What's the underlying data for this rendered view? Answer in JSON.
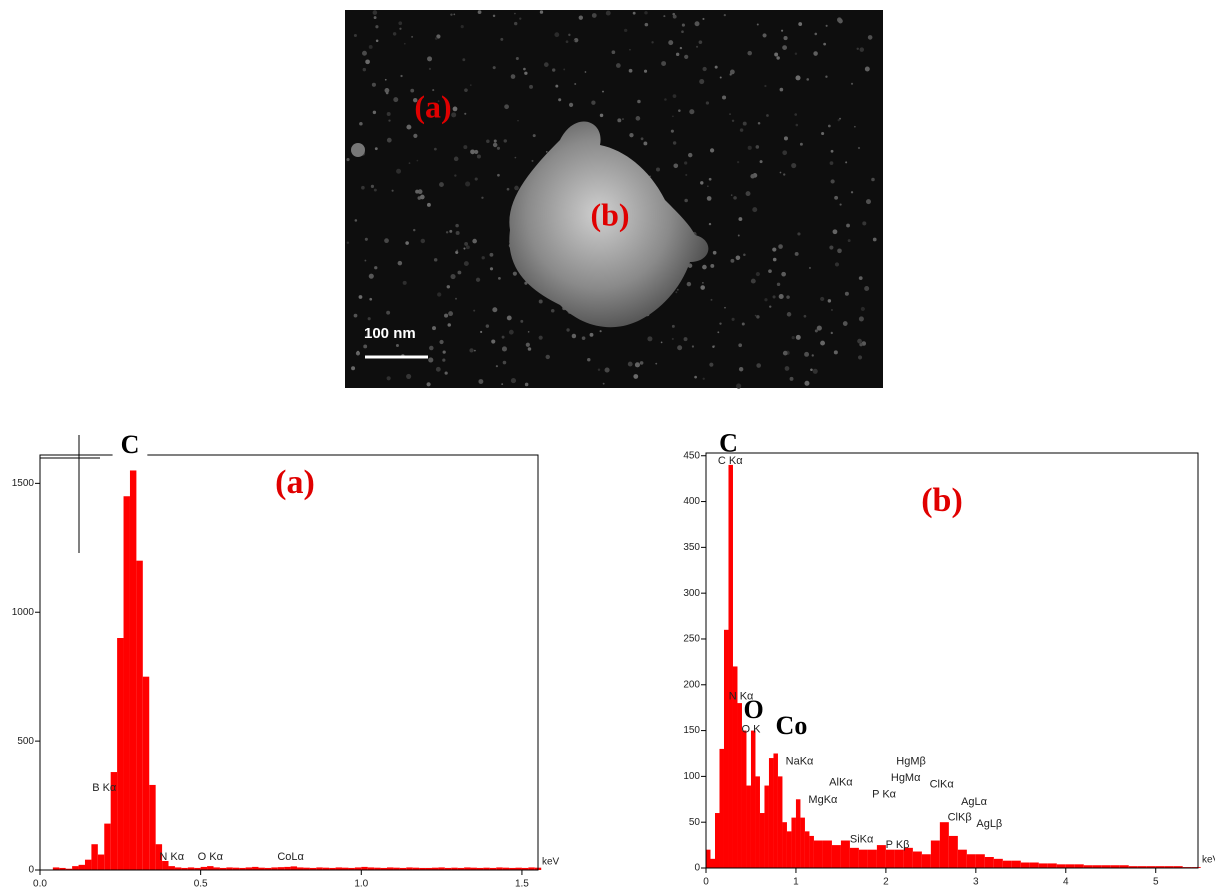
{
  "image": {
    "labels": [
      "(a)",
      "(b)"
    ],
    "scale_bar": "100 nm"
  },
  "chart_data": [
    {
      "type": "bar",
      "title": "(a)",
      "x_unit": "keV",
      "color": "#ff0000",
      "x": [
        0,
        0.02,
        0.04,
        0.06,
        0.08,
        0.1,
        0.12,
        0.14,
        0.16,
        0.18,
        0.2,
        0.22,
        0.24,
        0.26,
        0.28,
        0.3,
        0.32,
        0.34,
        0.36,
        0.38,
        0.4,
        0.42,
        0.44,
        0.46,
        0.48,
        0.5,
        0.52,
        0.54,
        0.56,
        0.58,
        0.6,
        0.62,
        0.64,
        0.66,
        0.68,
        0.7,
        0.72,
        0.74,
        0.76,
        0.78,
        0.8,
        0.82,
        0.84,
        0.86,
        0.88,
        0.9,
        0.92,
        0.94,
        0.96,
        0.98,
        1.0,
        1.02,
        1.04,
        1.06,
        1.08,
        1.1,
        1.12,
        1.14,
        1.16,
        1.18,
        1.2,
        1.22,
        1.24,
        1.26,
        1.28,
        1.3,
        1.32,
        1.34,
        1.36,
        1.38,
        1.4,
        1.42,
        1.44,
        1.46,
        1.48,
        1.5,
        1.52,
        1.54
      ],
      "values": [
        0,
        0,
        10,
        8,
        5,
        15,
        20,
        40,
        100,
        60,
        180,
        380,
        900,
        1450,
        1550,
        1200,
        750,
        330,
        100,
        35,
        15,
        10,
        8,
        10,
        8,
        12,
        15,
        10,
        8,
        10,
        9,
        8,
        10,
        12,
        9,
        8,
        10,
        11,
        12,
        14,
        10,
        9,
        8,
        10,
        9,
        8,
        10,
        9,
        8,
        10,
        12,
        10,
        9,
        8,
        10,
        9,
        8,
        10,
        9,
        8,
        8,
        9,
        10,
        8,
        9,
        8,
        10,
        9,
        8,
        9,
        8,
        10,
        9,
        8,
        9,
        8,
        10,
        9
      ],
      "xlim": [
        0,
        1.55
      ],
      "ylim": [
        0,
        1610
      ],
      "xticks": [
        {
          "value": 0,
          "label": "0.0"
        },
        {
          "value": 0.5,
          "label": "0.5"
        },
        {
          "value": 1,
          "label": "1.0"
        },
        {
          "value": 1.5,
          "label": "1.5"
        }
      ],
      "yticks": [
        0,
        500,
        1000,
        1500
      ],
      "annotations": [
        {
          "text": "B Kα",
          "x": 0.2,
          "y": 318
        },
        {
          "text": "N Kα",
          "x": 0.41,
          "y": 50
        },
        {
          "text": "O Kα",
          "x": 0.53,
          "y": 50
        },
        {
          "text": "CoLα",
          "x": 0.78,
          "y": 50
        }
      ],
      "element_labels": [
        {
          "text": "C",
          "x": 0.28,
          "y": 1640
        }
      ]
    },
    {
      "type": "bar",
      "title": "(b)",
      "x_unit": "keV",
      "color": "#ff0000",
      "x": [
        0,
        0.05,
        0.1,
        0.15,
        0.2,
        0.25,
        0.3,
        0.35,
        0.4,
        0.45,
        0.5,
        0.55,
        0.6,
        0.65,
        0.7,
        0.75,
        0.8,
        0.85,
        0.9,
        0.95,
        1.0,
        1.05,
        1.1,
        1.15,
        1.2,
        1.3,
        1.4,
        1.5,
        1.6,
        1.7,
        1.8,
        1.9,
        2.0,
        2.1,
        2.2,
        2.3,
        2.4,
        2.5,
        2.6,
        2.7,
        2.8,
        2.9,
        3.0,
        3.1,
        3.2,
        3.3,
        3.4,
        3.5,
        3.6,
        3.7,
        3.8,
        3.9,
        4.0,
        4.1,
        4.2,
        4.3,
        4.4,
        4.5,
        4.6,
        4.7,
        4.8,
        4.9,
        5.0,
        5.1,
        5.2,
        5.3,
        5.4
      ],
      "values": [
        20,
        10,
        60,
        130,
        260,
        440,
        220,
        180,
        150,
        90,
        150,
        100,
        60,
        90,
        120,
        125,
        100,
        50,
        40,
        55,
        75,
        55,
        40,
        35,
        30,
        30,
        25,
        30,
        22,
        20,
        20,
        25,
        20,
        20,
        22,
        18,
        15,
        30,
        50,
        35,
        20,
        15,
        15,
        12,
        10,
        8,
        8,
        6,
        6,
        5,
        5,
        4,
        4,
        4,
        3,
        3,
        3,
        3,
        3,
        2,
        2,
        2,
        2,
        2,
        2,
        1,
        1
      ],
      "xlim": [
        0,
        5.47
      ],
      "ylim": [
        0,
        453
      ],
      "xticks": [
        0,
        1,
        2,
        3,
        4,
        5
      ],
      "yticks": [
        0,
        50,
        100,
        150,
        200,
        250,
        300,
        350,
        400,
        450
      ],
      "annotations": [
        {
          "text": "C Kα",
          "x": 0.27,
          "y": 444
        },
        {
          "text": "N Kα",
          "x": 0.39,
          "y": 187
        },
        {
          "text": "O K",
          "x": 0.5,
          "y": 151
        },
        {
          "text": "NaKα",
          "x": 1.04,
          "y": 116
        },
        {
          "text": "MgKα",
          "x": 1.3,
          "y": 74
        },
        {
          "text": "AlKα",
          "x": 1.5,
          "y": 93
        },
        {
          "text": "SiKα",
          "x": 1.73,
          "y": 31
        },
        {
          "text": "P Kα",
          "x": 1.98,
          "y": 80
        },
        {
          "text": "P Kβ",
          "x": 2.13,
          "y": 25
        },
        {
          "text": "HgMβ",
          "x": 2.28,
          "y": 116
        },
        {
          "text": "HgMα",
          "x": 2.22,
          "y": 98
        },
        {
          "text": "ClKα",
          "x": 2.62,
          "y": 91
        },
        {
          "text": "ClKβ",
          "x": 2.82,
          "y": 55
        },
        {
          "text": "AgLα",
          "x": 2.98,
          "y": 72
        },
        {
          "text": "AgLβ",
          "x": 3.15,
          "y": 48
        }
      ],
      "element_labels": [
        {
          "text": "C",
          "x": 0.25,
          "y": 461
        },
        {
          "text": "O",
          "x": 0.53,
          "y": 170
        },
        {
          "text": "Co",
          "x": 0.95,
          "y": 153
        }
      ]
    }
  ]
}
